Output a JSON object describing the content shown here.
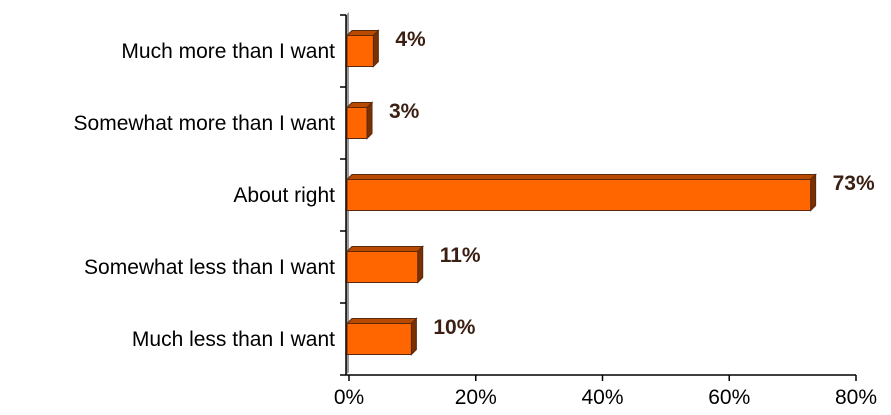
{
  "chart_data": {
    "type": "bar",
    "orientation": "horizontal",
    "categories": [
      "Much more than I want",
      "Somewhat more than I want",
      "About right",
      "Somewhat less than I want",
      "Much less than I want"
    ],
    "values": [
      4,
      3,
      73,
      11,
      10
    ],
    "data_labels": [
      "4%",
      "3%",
      "73%",
      "11%",
      "10%"
    ],
    "x_ticks": [
      "0%",
      "20%",
      "40%",
      "60%",
      "80%"
    ],
    "xlim": [
      0,
      80
    ],
    "grid": false,
    "legend": "none",
    "colors": {
      "bar_front": "#ff6600",
      "bar_top": "#b84a00",
      "bar_side": "#7a3000",
      "bar_outline": "#5a2a10",
      "axis_wall": "#9a9a9a",
      "data_label": "#3a1f12"
    }
  }
}
